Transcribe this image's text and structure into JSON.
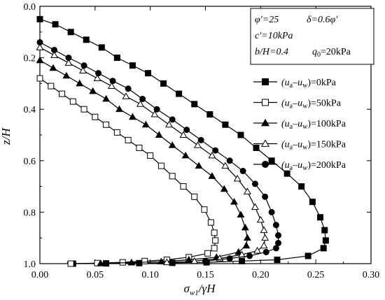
{
  "chart_data": {
    "type": "line",
    "xlabel": {
      "main": "σ",
      "sub": "w1",
      "rest": "/γH"
    },
    "ylabel": "z/H",
    "xlim": [
      0,
      0.3
    ],
    "ylim": [
      0,
      1.0
    ],
    "y_inverted": true,
    "x_ticks": [
      "0.00",
      "0.05",
      "0.10",
      "0.15",
      "0.20",
      "0.25",
      "0.30"
    ],
    "y_ticks": [
      "0.0",
      "0.2",
      "0.4",
      "0.6",
      "0.8",
      "1.0"
    ],
    "info_box": {
      "line1a": "φ′=25",
      "line1b": "δ=0.6φ′",
      "line2": "c′=10kPa",
      "line3a": "b/H=0.4",
      "line3b": "q",
      "line3b_sub": "0",
      "line3b_rest": "=20kPa"
    },
    "legend_position": "right",
    "series": [
      {
        "name": "(ua–uw)=0kPa",
        "prefix": "(u",
        "sub1": "a",
        "mid": "–u",
        "sub2": "w",
        "suffix": ")=0kPa",
        "marker": "square",
        "filled": true,
        "points": [
          [
            0.0,
            0.05
          ],
          [
            0.014,
            0.07
          ],
          [
            0.028,
            0.1
          ],
          [
            0.042,
            0.13
          ],
          [
            0.056,
            0.16
          ],
          [
            0.07,
            0.2
          ],
          [
            0.084,
            0.23
          ],
          [
            0.098,
            0.26
          ],
          [
            0.112,
            0.3
          ],
          [
            0.126,
            0.34
          ],
          [
            0.14,
            0.38
          ],
          [
            0.154,
            0.42
          ],
          [
            0.168,
            0.46
          ],
          [
            0.182,
            0.5
          ],
          [
            0.196,
            0.55
          ],
          [
            0.21,
            0.6
          ],
          [
            0.224,
            0.65
          ],
          [
            0.237,
            0.7
          ],
          [
            0.247,
            0.76
          ],
          [
            0.254,
            0.82
          ],
          [
            0.258,
            0.87
          ],
          [
            0.259,
            0.91
          ],
          [
            0.257,
            0.94
          ],
          [
            0.243,
            0.97
          ],
          [
            0.215,
            0.985
          ],
          [
            0.183,
            0.99
          ],
          [
            0.151,
            0.995
          ],
          [
            0.12,
            0.997
          ],
          [
            0.09,
            0.998
          ],
          [
            0.06,
            0.999
          ],
          [
            0.03,
            1.0
          ]
        ]
      },
      {
        "name": "(ua–uw)=50kPa",
        "prefix": "(u",
        "sub1": "a",
        "mid": "–u",
        "sub2": "w",
        "suffix": ")=50kPa",
        "marker": "square",
        "filled": false,
        "points": [
          [
            0.0,
            0.28
          ],
          [
            0.01,
            0.31
          ],
          [
            0.02,
            0.34
          ],
          [
            0.03,
            0.37
          ],
          [
            0.04,
            0.4
          ],
          [
            0.05,
            0.43
          ],
          [
            0.06,
            0.46
          ],
          [
            0.07,
            0.49
          ],
          [
            0.08,
            0.52
          ],
          [
            0.09,
            0.55
          ],
          [
            0.1,
            0.58
          ],
          [
            0.11,
            0.62
          ],
          [
            0.12,
            0.66
          ],
          [
            0.13,
            0.7
          ],
          [
            0.14,
            0.74
          ],
          [
            0.149,
            0.79
          ],
          [
            0.155,
            0.84
          ],
          [
            0.158,
            0.88
          ],
          [
            0.159,
            0.91
          ],
          [
            0.158,
            0.94
          ],
          [
            0.152,
            0.96
          ],
          [
            0.135,
            0.975
          ],
          [
            0.115,
            0.985
          ],
          [
            0.095,
            0.99
          ],
          [
            0.075,
            0.995
          ],
          [
            0.052,
            0.998
          ],
          [
            0.028,
            1.0
          ]
        ]
      },
      {
        "name": "(ua–uw)=100kPa",
        "prefix": "(u",
        "sub1": "a",
        "mid": "–u",
        "sub2": "w",
        "suffix": ")=100kPa",
        "marker": "triangle",
        "filled": true,
        "points": [
          [
            0.0,
            0.21
          ],
          [
            0.012,
            0.24
          ],
          [
            0.024,
            0.27
          ],
          [
            0.036,
            0.3
          ],
          [
            0.048,
            0.33
          ],
          [
            0.06,
            0.36
          ],
          [
            0.072,
            0.4
          ],
          [
            0.084,
            0.43
          ],
          [
            0.096,
            0.46
          ],
          [
            0.108,
            0.5
          ],
          [
            0.12,
            0.54
          ],
          [
            0.132,
            0.58
          ],
          [
            0.144,
            0.62
          ],
          [
            0.156,
            0.66
          ],
          [
            0.167,
            0.71
          ],
          [
            0.176,
            0.76
          ],
          [
            0.182,
            0.81
          ],
          [
            0.186,
            0.86
          ],
          [
            0.188,
            0.9
          ],
          [
            0.187,
            0.93
          ],
          [
            0.18,
            0.955
          ],
          [
            0.16,
            0.975
          ],
          [
            0.135,
            0.985
          ],
          [
            0.11,
            0.992
          ],
          [
            0.083,
            0.996
          ],
          [
            0.055,
            0.999
          ]
        ]
      },
      {
        "name": "(ua–uw)=150kPa",
        "prefix": "(u",
        "sub1": "a",
        "mid": "–u",
        "sub2": "w",
        "suffix": ")=150kPa",
        "marker": "triangle",
        "filled": false,
        "points": [
          [
            0.0,
            0.16
          ],
          [
            0.013,
            0.19
          ],
          [
            0.026,
            0.22
          ],
          [
            0.039,
            0.25
          ],
          [
            0.052,
            0.28
          ],
          [
            0.065,
            0.31
          ],
          [
            0.078,
            0.35
          ],
          [
            0.091,
            0.38
          ],
          [
            0.104,
            0.42
          ],
          [
            0.117,
            0.46
          ],
          [
            0.13,
            0.5
          ],
          [
            0.143,
            0.54
          ],
          [
            0.156,
            0.58
          ],
          [
            0.168,
            0.62
          ],
          [
            0.179,
            0.67
          ],
          [
            0.188,
            0.72
          ],
          [
            0.195,
            0.78
          ],
          [
            0.2,
            0.83
          ],
          [
            0.203,
            0.87
          ],
          [
            0.204,
            0.9
          ],
          [
            0.203,
            0.93
          ],
          [
            0.197,
            0.95
          ],
          [
            0.183,
            0.965
          ],
          [
            0.163,
            0.98
          ],
          [
            0.14,
            0.99
          ],
          [
            0.115,
            0.995
          ]
        ]
      },
      {
        "name": "(ua–uw)=200kPa",
        "prefix": "(u",
        "sub1": "a",
        "mid": "–u",
        "sub2": "w",
        "suffix": ")=200kPa",
        "marker": "circle",
        "filled": true,
        "points": [
          [
            0.0,
            0.14
          ],
          [
            0.013,
            0.17
          ],
          [
            0.026,
            0.2
          ],
          [
            0.04,
            0.23
          ],
          [
            0.053,
            0.26
          ],
          [
            0.066,
            0.29
          ],
          [
            0.08,
            0.32
          ],
          [
            0.093,
            0.36
          ],
          [
            0.106,
            0.4
          ],
          [
            0.12,
            0.44
          ],
          [
            0.133,
            0.48
          ],
          [
            0.146,
            0.52
          ],
          [
            0.159,
            0.56
          ],
          [
            0.172,
            0.6
          ],
          [
            0.184,
            0.64
          ],
          [
            0.195,
            0.69
          ],
          [
            0.204,
            0.74
          ],
          [
            0.21,
            0.8
          ],
          [
            0.214,
            0.85
          ],
          [
            0.216,
            0.89
          ],
          [
            0.216,
            0.92
          ],
          [
            0.214,
            0.94
          ],
          [
            0.205,
            0.955
          ],
          [
            0.19,
            0.97
          ],
          [
            0.172,
            0.98
          ],
          [
            0.15,
            0.99
          ]
        ]
      }
    ]
  }
}
